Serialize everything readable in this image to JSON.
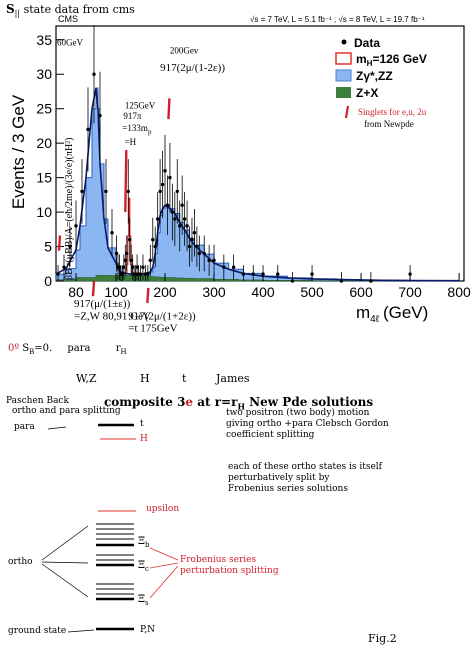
{
  "header": {
    "title": "S",
    "subscript": "||",
    "rest": "state data from cms"
  },
  "chart_data": {
    "type": "bar",
    "experiment": "CMS",
    "energy_label": "√s = 7 TeV, L = 5.1 fb⁻¹ ; √s = 8 TeV, L = 19.7 fb⁻¹",
    "xlabel": "m",
    "xlabel_sub": "4ℓ",
    "xlabel_unit": "(GeV)",
    "ylabel": "Events / 3 GeV",
    "xlim": [
      70,
      810
    ],
    "ylim": [
      0,
      37
    ],
    "x_ticks": [
      80,
      100,
      200,
      300,
      400,
      500,
      600,
      700,
      800
    ],
    "y_ticks": [
      0,
      5,
      10,
      15,
      20,
      25,
      30,
      35
    ],
    "legend": [
      {
        "label": "Data",
        "marker": "dot",
        "color": "#000000"
      },
      {
        "label": "m",
        "sub": "H",
        "rest": "=126 GeV",
        "marker": "box",
        "color": "#e0302a"
      },
      {
        "label": "Zγ*,ZZ",
        "marker": "fill",
        "color": "#8ab7f2"
      },
      {
        "label": "Z+X",
        "marker": "fill",
        "color": "#3d7f3a"
      }
    ],
    "zz_background": {
      "x": [
        70,
        75,
        80,
        82,
        85,
        88,
        90,
        91,
        92,
        94,
        96,
        100,
        105,
        110,
        115,
        120,
        125,
        130,
        140,
        150,
        160,
        170,
        175,
        180,
        185,
        190,
        195,
        200,
        210,
        220,
        230,
        240,
        250,
        260,
        280,
        300,
        330,
        360,
        400,
        450,
        500,
        550,
        600,
        650,
        700,
        800
      ],
      "y": [
        1.0,
        1.8,
        4.5,
        8,
        15,
        25,
        28,
        25,
        17,
        9,
        4.8,
        2.6,
        1.7,
        1.3,
        1.2,
        1.1,
        1.05,
        1.0,
        1.0,
        1.0,
        1.1,
        1.3,
        2.0,
        4.0,
        7.0,
        9.5,
        10.5,
        11.0,
        10.5,
        9.8,
        8.5,
        7.4,
        6.2,
        5.2,
        3.9,
        2.6,
        1.7,
        1.1,
        0.7,
        0.45,
        0.3,
        0.22,
        0.15,
        0.1,
        0.07,
        0.04
      ]
    },
    "zx_background": {
      "x": [
        70,
        80,
        90,
        100,
        110,
        120,
        130,
        140,
        150,
        160,
        170,
        180,
        190,
        200,
        220,
        240,
        260,
        300,
        350,
        400,
        500,
        600,
        800
      ],
      "y": [
        0.2,
        0.5,
        0.8,
        0.8,
        0.8,
        0.8,
        0.8,
        0.8,
        0.75,
        0.7,
        0.65,
        0.6,
        0.55,
        0.5,
        0.45,
        0.4,
        0.35,
        0.25,
        0.15,
        0.1,
        0.05,
        0.03,
        0.01
      ]
    },
    "signal": {
      "x": [
        118,
        120,
        122,
        124,
        126,
        128,
        130,
        132,
        134
      ],
      "y": [
        1.0,
        1.2,
        2.4,
        6.5,
        12.0,
        6.5,
        2.4,
        1.2,
        1.0
      ]
    },
    "data_points": {
      "x": [
        71,
        74,
        77,
        80,
        83,
        86,
        89,
        92,
        95,
        98,
        101,
        104,
        107,
        110,
        113,
        116,
        119,
        122,
        125,
        128,
        131,
        134,
        137,
        140,
        143,
        146,
        150,
        155,
        160,
        165,
        170,
        175,
        180,
        185,
        190,
        195,
        200,
        205,
        210,
        215,
        220,
        225,
        230,
        235,
        240,
        245,
        250,
        255,
        260,
        265,
        270,
        280,
        290,
        300,
        320,
        340,
        360,
        380,
        400,
        430,
        460,
        500,
        560,
        620,
        700
      ],
      "y": [
        1,
        2,
        5,
        8,
        13,
        22,
        30,
        24,
        13,
        7,
        4,
        2,
        2,
        1,
        1,
        2,
        3,
        4,
        13,
        6,
        3,
        2,
        1,
        1,
        2,
        1,
        1,
        2,
        1,
        1,
        3,
        6,
        5,
        9,
        13,
        14,
        16,
        11,
        15,
        10,
        9,
        13,
        8,
        11,
        9,
        8,
        5,
        6,
        7,
        5,
        4,
        4,
        3,
        3,
        2,
        2,
        1,
        1,
        1,
        1,
        0,
        1,
        0,
        0,
        1
      ]
    },
    "annotations": [
      {
        "text": "60GeV",
        "x": 70.5,
        "y": 34.2
      },
      {
        "text": "200Gev",
        "x": 210,
        "y": 33
      },
      {
        "text": "917(2μ/(1-2ε))",
        "x": 190,
        "y": 30.5
      },
      {
        "text": "125GeV",
        "x": 118,
        "y": 25
      },
      {
        "text": "917π",
        "x": 115,
        "y": 23.5
      },
      {
        "text": "=133m",
        "x": 113,
        "y": 21.8,
        "sub": "p"
      },
      {
        "text": "=H",
        "x": 117.5,
        "y": 19.7
      },
      {
        "text": "917(μ/(1±ε))",
        "x": 79,
        "y": -3.8
      },
      {
        "text": "=Z,W  80,91 GeV",
        "x": 79,
        "y": -5.6
      },
      {
        "text": "917(2μ/(1+2ε))",
        "x": 125,
        "y": -5.6
      },
      {
        "text": "=t   175GeV",
        "x": 125,
        "y": -7.3
      }
    ],
    "vertical_lines": {
      "ahora": "x"
    },
    "side_formula": "βB=(μBB)/A=(eħ/2me)/(3e/e)(πH²)",
    "red_note": "Singlets for e,u, 2u",
    "red_note_sub": "from Newpde"
  },
  "middle": {
    "line1_a": "0º",
    "line1_b": "S",
    "line1_sub": "B",
    "line1_c": "=0.",
    "line1_d": "para",
    "line1_e": "r",
    "line1_esub": "H",
    "labels": [
      "W,Z",
      "H",
      "t",
      "James"
    ]
  },
  "diagram": {
    "paschen": "Paschen Back",
    "ortho_para": "ortho and para splitting",
    "title_a": "composite 3",
    "title_e": "e",
    "title_b": " at r=r",
    "title_sub": "H",
    "title_c": " New Pde solutions",
    "note1": [
      "two positron (two body) motion",
      "giving ortho +para Clebsch Gordon",
      "coefficient splitting"
    ],
    "note2": [
      "each of these ortho states is itself",
      "perturbatively split by",
      "Frobenius series solutions"
    ],
    "para": "para",
    "t": "t",
    "H": "H",
    "upsilon": "upsilon",
    "xi_b": "Ξ",
    "xi_b_sub": "b",
    "xi_c": "Ξ",
    "xi_c_sub": "c",
    "xi_s": "Ξ",
    "xi_s_sub": "s",
    "frob": [
      "Frobenius series",
      "perturbation splitting"
    ],
    "ortho": "ortho",
    "ground": "ground state",
    "pn": "P,N",
    "fig": "Fig.2"
  }
}
